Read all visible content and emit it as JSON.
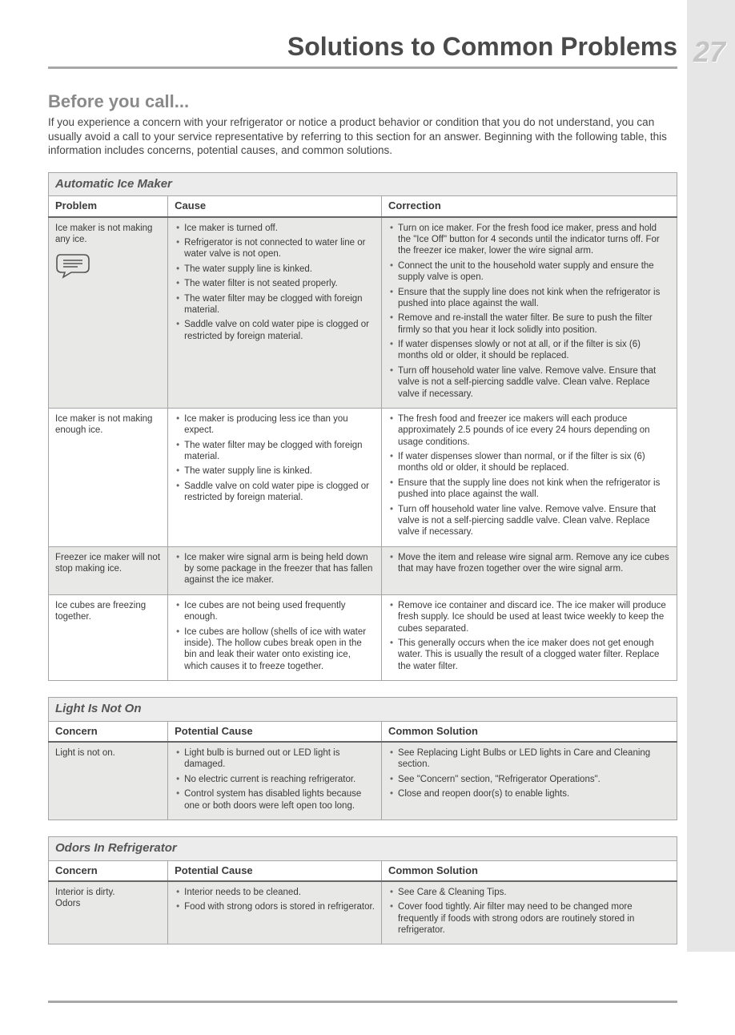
{
  "page_number": "27",
  "page_title": "Solutions to Common Problems",
  "section_heading": "Before you call...",
  "intro_text": "If you experience a concern with your refrigerator or notice a product behavior or condition that you do not understand, you can usually avoid a call to your service representative by referring to this section for an answer. Beginning with the following table, this information includes concerns, potential causes, and common solutions.",
  "colors": {
    "page_bg": "#ffffff",
    "tab_bg": "#e6e6e6",
    "cat_bg": "#ececec",
    "shade_bg": "#e8e8e6",
    "border": "#a5a5a5",
    "rule": "#a8a8a8",
    "heading_grey": "#8a8a8a",
    "text": "#3a3a3a"
  },
  "tables": [
    {
      "category": "Automatic Ice Maker",
      "headers": [
        "Problem",
        "Cause",
        "Correction"
      ],
      "rows": [
        {
          "shaded": true,
          "has_icon": true,
          "problem": "Ice maker is not making any ice.",
          "causes": [
            "Ice maker is turned off.",
            "Refrigerator is not connected to water line or water valve is not open.",
            "The water supply line is kinked.",
            "The water filter is not seated properly.",
            "The water filter may be clogged with foreign material.",
            "Saddle valve on cold water pipe is clogged or restricted by foreign material."
          ],
          "corrections": [
            "Turn on ice maker. For the fresh food ice maker, press and hold the \"Ice Off\" button for 4 seconds until the indicator turns off. For the freezer ice maker, lower the wire signal arm.",
            "Connect the unit to the household water supply and ensure the supply valve is open.",
            "Ensure that the supply line does not kink when the refrigerator is pushed into place against the wall.",
            "Remove and re-install the water filter. Be sure to push the filter firmly so that you hear it lock solidly into position.",
            "If water dispenses slowly or not at all, or if the filter is six (6) months old or older, it should be replaced.",
            "Turn off household water line valve. Remove valve. Ensure that valve is not a self-piercing saddle valve. Clean valve. Replace valve if necessary."
          ]
        },
        {
          "shaded": false,
          "problem": "Ice maker is not making enough ice.",
          "causes": [
            "Ice maker is producing less ice than you expect.",
            "The water filter may be clogged with foreign material.",
            "The water supply line is kinked.",
            "Saddle valve on cold water pipe is clogged or restricted by foreign material."
          ],
          "corrections": [
            "The fresh food and freezer ice makers will each produce approximately 2.5 pounds of ice every 24 hours depending on usage conditions.",
            "If water dispenses slower than normal, or if the filter is six (6) months old or older, it should be replaced.",
            "Ensure that the supply line does not kink when the refrigerator is pushed into place against the wall.",
            "Turn off household water line valve. Remove valve. Ensure that valve is not a self-piercing saddle valve. Clean valve. Replace valve if necessary."
          ]
        },
        {
          "shaded": true,
          "problem": "Freezer ice maker will not stop making ice.",
          "causes": [
            "Ice maker wire signal arm is being held down by some package in the freezer that has fallen against the ice maker."
          ],
          "corrections": [
            "Move the item and release wire signal arm. Remove any ice cubes that may have frozen together over the wire signal arm."
          ]
        },
        {
          "shaded": false,
          "problem": "Ice cubes are freezing together.",
          "causes": [
            "Ice cubes are not being used frequently enough.",
            "Ice cubes are hollow (shells of ice with water inside). The hollow cubes break open in the bin and leak their water onto existing ice, which causes it to freeze together."
          ],
          "corrections": [
            "Remove ice container and discard ice. The ice maker will produce fresh supply. Ice should be used at least twice weekly to keep the cubes separated.",
            "This generally occurs when the ice maker does not get enough water. This is usually the result of a clogged water filter. Replace the water filter."
          ]
        }
      ]
    },
    {
      "category": "Light Is Not On",
      "headers": [
        "Concern",
        "Potential Cause",
        "Common Solution"
      ],
      "rows": [
        {
          "shaded": true,
          "problem": "Light is not on.",
          "causes": [
            "Light bulb is burned out or LED light is damaged.",
            "No electric current is reaching refrigerator.",
            "Control system has disabled lights because one or both doors were left open too long."
          ],
          "corrections": [
            "See Replacing Light Bulbs or LED lights in Care and Cleaning section.",
            "See \"Concern\" section, \"Refrigerator Operations\".",
            "Close and reopen door(s) to enable lights."
          ]
        }
      ]
    },
    {
      "category": "Odors In Refrigerator",
      "headers": [
        "Concern",
        "Potential Cause",
        "Common Solution"
      ],
      "rows": [
        {
          "shaded": true,
          "problem": "Interior is dirty.\nOdors",
          "causes": [
            "Interior needs to be cleaned.",
            "Food with strong odors is stored in refrigerator."
          ],
          "corrections": [
            "See Care & Cleaning Tips.",
            "Cover food tightly. Air filter may need to be changed more frequently if foods with strong odors are routinely stored in refrigerator."
          ]
        }
      ]
    }
  ]
}
